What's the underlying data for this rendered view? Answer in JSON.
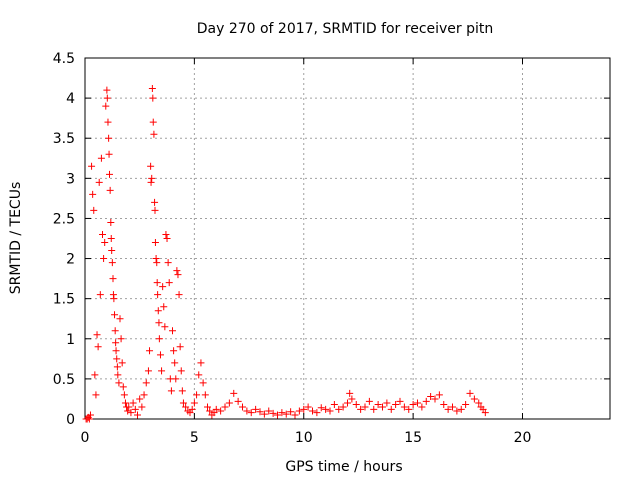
{
  "chart_data": {
    "type": "scatter",
    "title": "Day 270 of 2017, SRMTID for receiver pitn",
    "xlabel": "GPS time / hours",
    "ylabel": "SRMTID / TECUs",
    "xlim": [
      0,
      24
    ],
    "ylim": [
      0,
      4.5
    ],
    "xticks": [
      0,
      5,
      10,
      15,
      20
    ],
    "yticks": [
      0,
      0.5,
      1,
      1.5,
      2,
      2.5,
      3,
      3.5,
      4,
      4.5
    ],
    "xtick_labels": [
      "0",
      "5",
      "10",
      "15",
      "20"
    ],
    "ytick_labels": [
      "0",
      "0.5",
      "1",
      "1.5",
      "2",
      "2.5",
      "3",
      "3.5",
      "4",
      "4.5"
    ],
    "grid": true,
    "marker": "+",
    "series": [
      {
        "name": "pitn",
        "color": "#ff0000",
        "points": [
          [
            0.05,
            0.0
          ],
          [
            0.1,
            0.0
          ],
          [
            0.15,
            0.02
          ],
          [
            0.2,
            0.0
          ],
          [
            0.25,
            0.05
          ],
          [
            0.3,
            3.15
          ],
          [
            0.35,
            2.8
          ],
          [
            0.4,
            2.6
          ],
          [
            0.45,
            0.55
          ],
          [
            0.5,
            0.3
          ],
          [
            0.55,
            1.05
          ],
          [
            0.6,
            0.9
          ],
          [
            0.65,
            2.95
          ],
          [
            0.7,
            1.55
          ],
          [
            0.75,
            3.25
          ],
          [
            0.8,
            2.3
          ],
          [
            0.85,
            2.0
          ],
          [
            0.9,
            2.2
          ],
          [
            0.95,
            3.9
          ],
          [
            1.0,
            4.1
          ],
          [
            1.02,
            4.0
          ],
          [
            1.05,
            3.7
          ],
          [
            1.08,
            3.5
          ],
          [
            1.1,
            3.3
          ],
          [
            1.12,
            3.05
          ],
          [
            1.15,
            2.85
          ],
          [
            1.18,
            2.45
          ],
          [
            1.2,
            2.25
          ],
          [
            1.22,
            2.1
          ],
          [
            1.25,
            1.95
          ],
          [
            1.28,
            1.75
          ],
          [
            1.3,
            1.55
          ],
          [
            1.32,
            1.5
          ],
          [
            1.35,
            1.3
          ],
          [
            1.38,
            1.1
          ],
          [
            1.4,
            0.95
          ],
          [
            1.42,
            0.85
          ],
          [
            1.45,
            0.75
          ],
          [
            1.48,
            0.65
          ],
          [
            1.5,
            0.55
          ],
          [
            1.55,
            0.45
          ],
          [
            1.6,
            1.25
          ],
          [
            1.65,
            1.0
          ],
          [
            1.7,
            0.7
          ],
          [
            1.75,
            0.4
          ],
          [
            1.8,
            0.3
          ],
          [
            1.85,
            0.2
          ],
          [
            1.9,
            0.15
          ],
          [
            1.95,
            0.1
          ],
          [
            2.0,
            0.15
          ],
          [
            2.1,
            0.08
          ],
          [
            2.2,
            0.2
          ],
          [
            2.3,
            0.12
          ],
          [
            2.4,
            0.05
          ],
          [
            2.5,
            0.25
          ],
          [
            2.6,
            0.15
          ],
          [
            2.7,
            0.3
          ],
          [
            2.8,
            0.45
          ],
          [
            2.9,
            0.6
          ],
          [
            2.95,
            0.85
          ],
          [
            3.0,
            3.15
          ],
          [
            3.02,
            2.95
          ],
          [
            3.05,
            3.0
          ],
          [
            3.08,
            4.12
          ],
          [
            3.1,
            4.0
          ],
          [
            3.12,
            3.7
          ],
          [
            3.15,
            3.55
          ],
          [
            3.18,
            2.7
          ],
          [
            3.2,
            2.6
          ],
          [
            3.22,
            2.2
          ],
          [
            3.25,
            2.0
          ],
          [
            3.28,
            1.95
          ],
          [
            3.3,
            1.7
          ],
          [
            3.32,
            1.55
          ],
          [
            3.35,
            1.35
          ],
          [
            3.38,
            1.2
          ],
          [
            3.4,
            1.0
          ],
          [
            3.45,
            0.8
          ],
          [
            3.5,
            0.6
          ],
          [
            3.55,
            1.65
          ],
          [
            3.6,
            1.4
          ],
          [
            3.65,
            1.15
          ],
          [
            3.7,
            2.3
          ],
          [
            3.75,
            2.25
          ],
          [
            3.8,
            1.95
          ],
          [
            3.85,
            1.7
          ],
          [
            3.9,
            0.5
          ],
          [
            3.95,
            0.35
          ],
          [
            4.0,
            1.1
          ],
          [
            4.05,
            0.85
          ],
          [
            4.1,
            0.7
          ],
          [
            4.15,
            0.5
          ],
          [
            4.2,
            1.85
          ],
          [
            4.25,
            1.8
          ],
          [
            4.3,
            1.55
          ],
          [
            4.35,
            0.9
          ],
          [
            4.4,
            0.6
          ],
          [
            4.45,
            0.35
          ],
          [
            4.5,
            0.2
          ],
          [
            4.6,
            0.15
          ],
          [
            4.7,
            0.1
          ],
          [
            4.8,
            0.08
          ],
          [
            4.9,
            0.12
          ],
          [
            5.0,
            0.2
          ],
          [
            5.1,
            0.3
          ],
          [
            5.2,
            0.55
          ],
          [
            5.3,
            0.7
          ],
          [
            5.4,
            0.45
          ],
          [
            5.5,
            0.3
          ],
          [
            5.6,
            0.15
          ],
          [
            5.7,
            0.1
          ],
          [
            5.8,
            0.05
          ],
          [
            5.9,
            0.08
          ],
          [
            6.0,
            0.12
          ],
          [
            6.2,
            0.1
          ],
          [
            6.4,
            0.15
          ],
          [
            6.6,
            0.2
          ],
          [
            6.8,
            0.32
          ],
          [
            7.0,
            0.22
          ],
          [
            7.2,
            0.15
          ],
          [
            7.4,
            0.1
          ],
          [
            7.6,
            0.08
          ],
          [
            7.8,
            0.12
          ],
          [
            8.0,
            0.09
          ],
          [
            8.2,
            0.06
          ],
          [
            8.4,
            0.1
          ],
          [
            8.6,
            0.07
          ],
          [
            8.8,
            0.05
          ],
          [
            9.0,
            0.08
          ],
          [
            9.2,
            0.06
          ],
          [
            9.4,
            0.09
          ],
          [
            9.6,
            0.05
          ],
          [
            9.8,
            0.1
          ],
          [
            10.0,
            0.12
          ],
          [
            10.2,
            0.15
          ],
          [
            10.4,
            0.1
          ],
          [
            10.6,
            0.08
          ],
          [
            10.8,
            0.14
          ],
          [
            11.0,
            0.12
          ],
          [
            11.2,
            0.1
          ],
          [
            11.4,
            0.18
          ],
          [
            11.6,
            0.12
          ],
          [
            11.8,
            0.15
          ],
          [
            12.0,
            0.2
          ],
          [
            12.1,
            0.32
          ],
          [
            12.2,
            0.25
          ],
          [
            12.4,
            0.18
          ],
          [
            12.6,
            0.12
          ],
          [
            12.8,
            0.15
          ],
          [
            13.0,
            0.22
          ],
          [
            13.2,
            0.12
          ],
          [
            13.4,
            0.18
          ],
          [
            13.6,
            0.15
          ],
          [
            13.8,
            0.2
          ],
          [
            14.0,
            0.12
          ],
          [
            14.2,
            0.18
          ],
          [
            14.4,
            0.22
          ],
          [
            14.6,
            0.15
          ],
          [
            14.8,
            0.12
          ],
          [
            15.0,
            0.18
          ],
          [
            15.2,
            0.2
          ],
          [
            15.4,
            0.15
          ],
          [
            15.6,
            0.22
          ],
          [
            15.8,
            0.28
          ],
          [
            16.0,
            0.25
          ],
          [
            16.2,
            0.3
          ],
          [
            16.4,
            0.18
          ],
          [
            16.6,
            0.12
          ],
          [
            16.8,
            0.15
          ],
          [
            17.0,
            0.1
          ],
          [
            17.2,
            0.12
          ],
          [
            17.4,
            0.18
          ],
          [
            17.6,
            0.32
          ],
          [
            17.8,
            0.25
          ],
          [
            18.0,
            0.2
          ],
          [
            18.1,
            0.15
          ],
          [
            18.2,
            0.12
          ],
          [
            18.3,
            0.08
          ]
        ]
      }
    ]
  }
}
